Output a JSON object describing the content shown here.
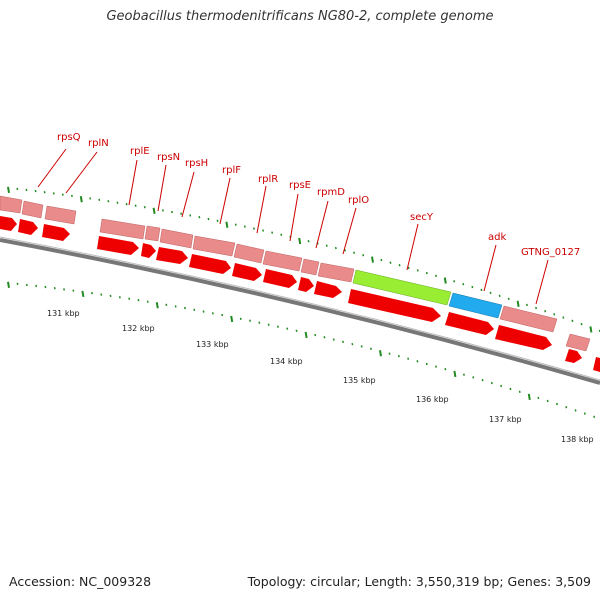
{
  "title": "Geobacillus thermodenitrificans NG80-2, complete genome",
  "accession": "Accession: NC_009328",
  "topology": "Topology: circular; Length: 3,550,319 bp; Genes: 3,509",
  "colors": {
    "backbone": "#777777",
    "cds": "#ee0000",
    "gene_feature": "#e98b8b",
    "highlight_secY": "#99ee33",
    "highlight_adk": "#22aaee",
    "tick": "#228b22",
    "label": "#cc0000"
  },
  "gene_labels": [
    "rpsQ",
    "rplN",
    "rplE",
    "rpsN",
    "rpsH",
    "rplF",
    "rplR",
    "rpsE",
    "rpmD",
    "rplO",
    "secY",
    "adk",
    "GTNG_0127"
  ],
  "kbp_labels": [
    "131 kbp",
    "132 kbp",
    "133 kbp",
    "134 kbp",
    "135 kbp",
    "136 kbp",
    "137 kbp",
    "138 kbp"
  ]
}
